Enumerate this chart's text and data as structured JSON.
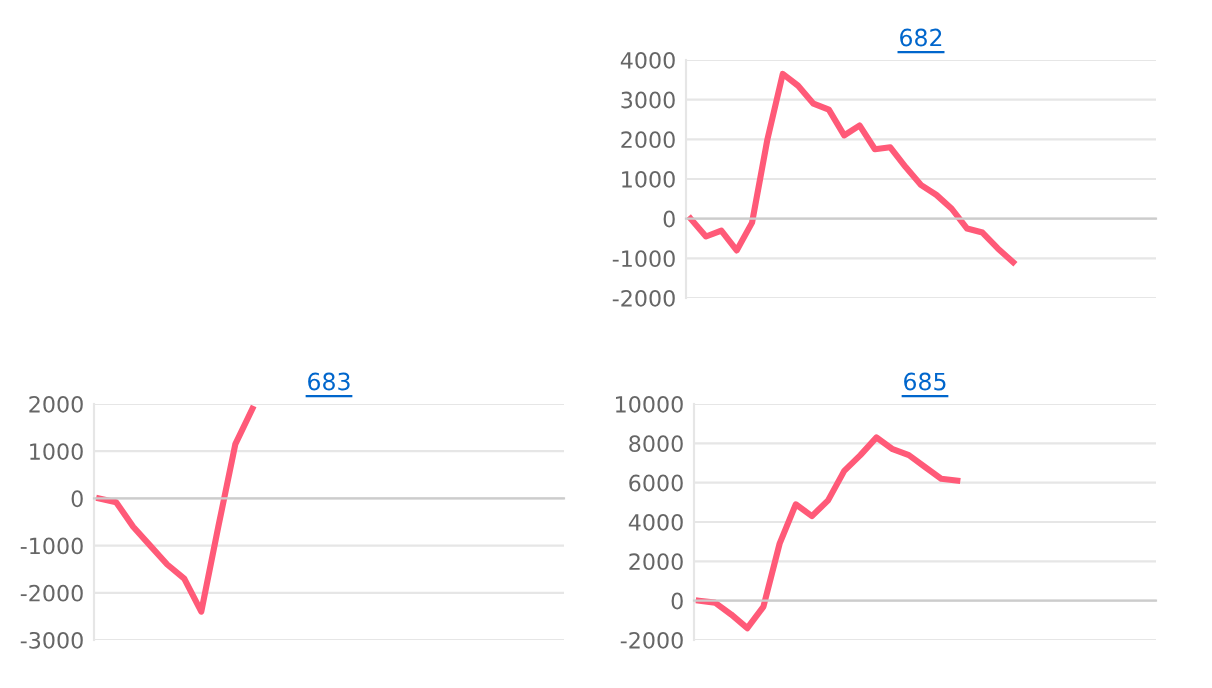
{
  "chart_data": [
    {
      "type": "line",
      "title": "682",
      "categories": [
        null,
        null,
        null,
        null,
        null,
        null,
        null,
        null,
        null,
        null,
        null,
        null,
        null,
        null,
        null,
        null,
        null,
        null,
        null,
        null,
        null,
        null,
        null,
        null,
        null,
        null,
        null,
        null,
        null,
        null,
        null
      ],
      "series": [
        {
          "color": "#ff5a78",
          "values": [
            0,
            -450,
            -300,
            -800,
            -100,
            2000,
            3650,
            3350,
            2900,
            2750,
            2100,
            2350,
            1750,
            1800,
            1300,
            850,
            600,
            250,
            -250,
            -350,
            -750,
            -1100,
            null,
            null,
            null,
            null,
            null,
            null,
            null,
            null,
            null
          ]
        }
      ],
      "ylim": [
        -2000,
        4000
      ],
      "yticks": [
        -2000,
        -1000,
        0,
        1000,
        2000,
        3000,
        4000
      ],
      "grid": "y",
      "tick_labels": "y",
      "marker": "none"
    },
    {
      "type": "line",
      "title": "683",
      "categories": [
        null,
        null,
        null,
        null,
        null,
        null,
        null,
        null,
        null,
        null,
        null,
        null,
        null,
        null,
        null,
        null,
        null,
        null,
        null,
        null,
        null,
        null,
        null,
        null,
        null,
        null,
        null,
        null
      ],
      "series": [
        {
          "color": "#ff5a78",
          "values": [
            0,
            -80,
            -600,
            -1000,
            -1400,
            -1700,
            -2400,
            -600,
            1150,
            1900,
            null,
            null,
            null,
            null,
            null,
            null,
            null,
            null,
            null,
            null,
            null,
            null,
            null,
            null,
            null,
            null,
            null,
            null
          ]
        }
      ],
      "ylim": [
        -3000,
        2000
      ],
      "yticks": [
        -3000,
        -2000,
        -1000,
        0,
        1000,
        2000
      ],
      "grid": "y",
      "tick_labels": "y",
      "marker": "none"
    },
    {
      "type": "line",
      "title": "685",
      "categories": [
        null,
        null,
        null,
        null,
        null,
        null,
        null,
        null,
        null,
        null,
        null,
        null,
        null,
        null,
        null,
        null,
        null,
        null,
        null,
        null,
        null,
        null,
        null,
        null,
        null,
        null,
        null,
        null,
        null
      ],
      "series": [
        {
          "color": "#ff5a78",
          "values": [
            0,
            -100,
            -700,
            -1400,
            -300,
            2900,
            4900,
            4300,
            5100,
            6600,
            7400,
            8300,
            7700,
            7400,
            6800,
            6200,
            6100,
            null,
            null,
            null,
            null,
            null,
            null,
            null,
            null,
            null,
            null,
            null,
            null
          ]
        }
      ],
      "ylim": [
        -2000,
        10000
      ],
      "yticks": [
        -2000,
        0,
        2000,
        4000,
        6000,
        8000,
        10000
      ],
      "grid": "y",
      "tick_labels": "y",
      "marker": "none"
    }
  ]
}
